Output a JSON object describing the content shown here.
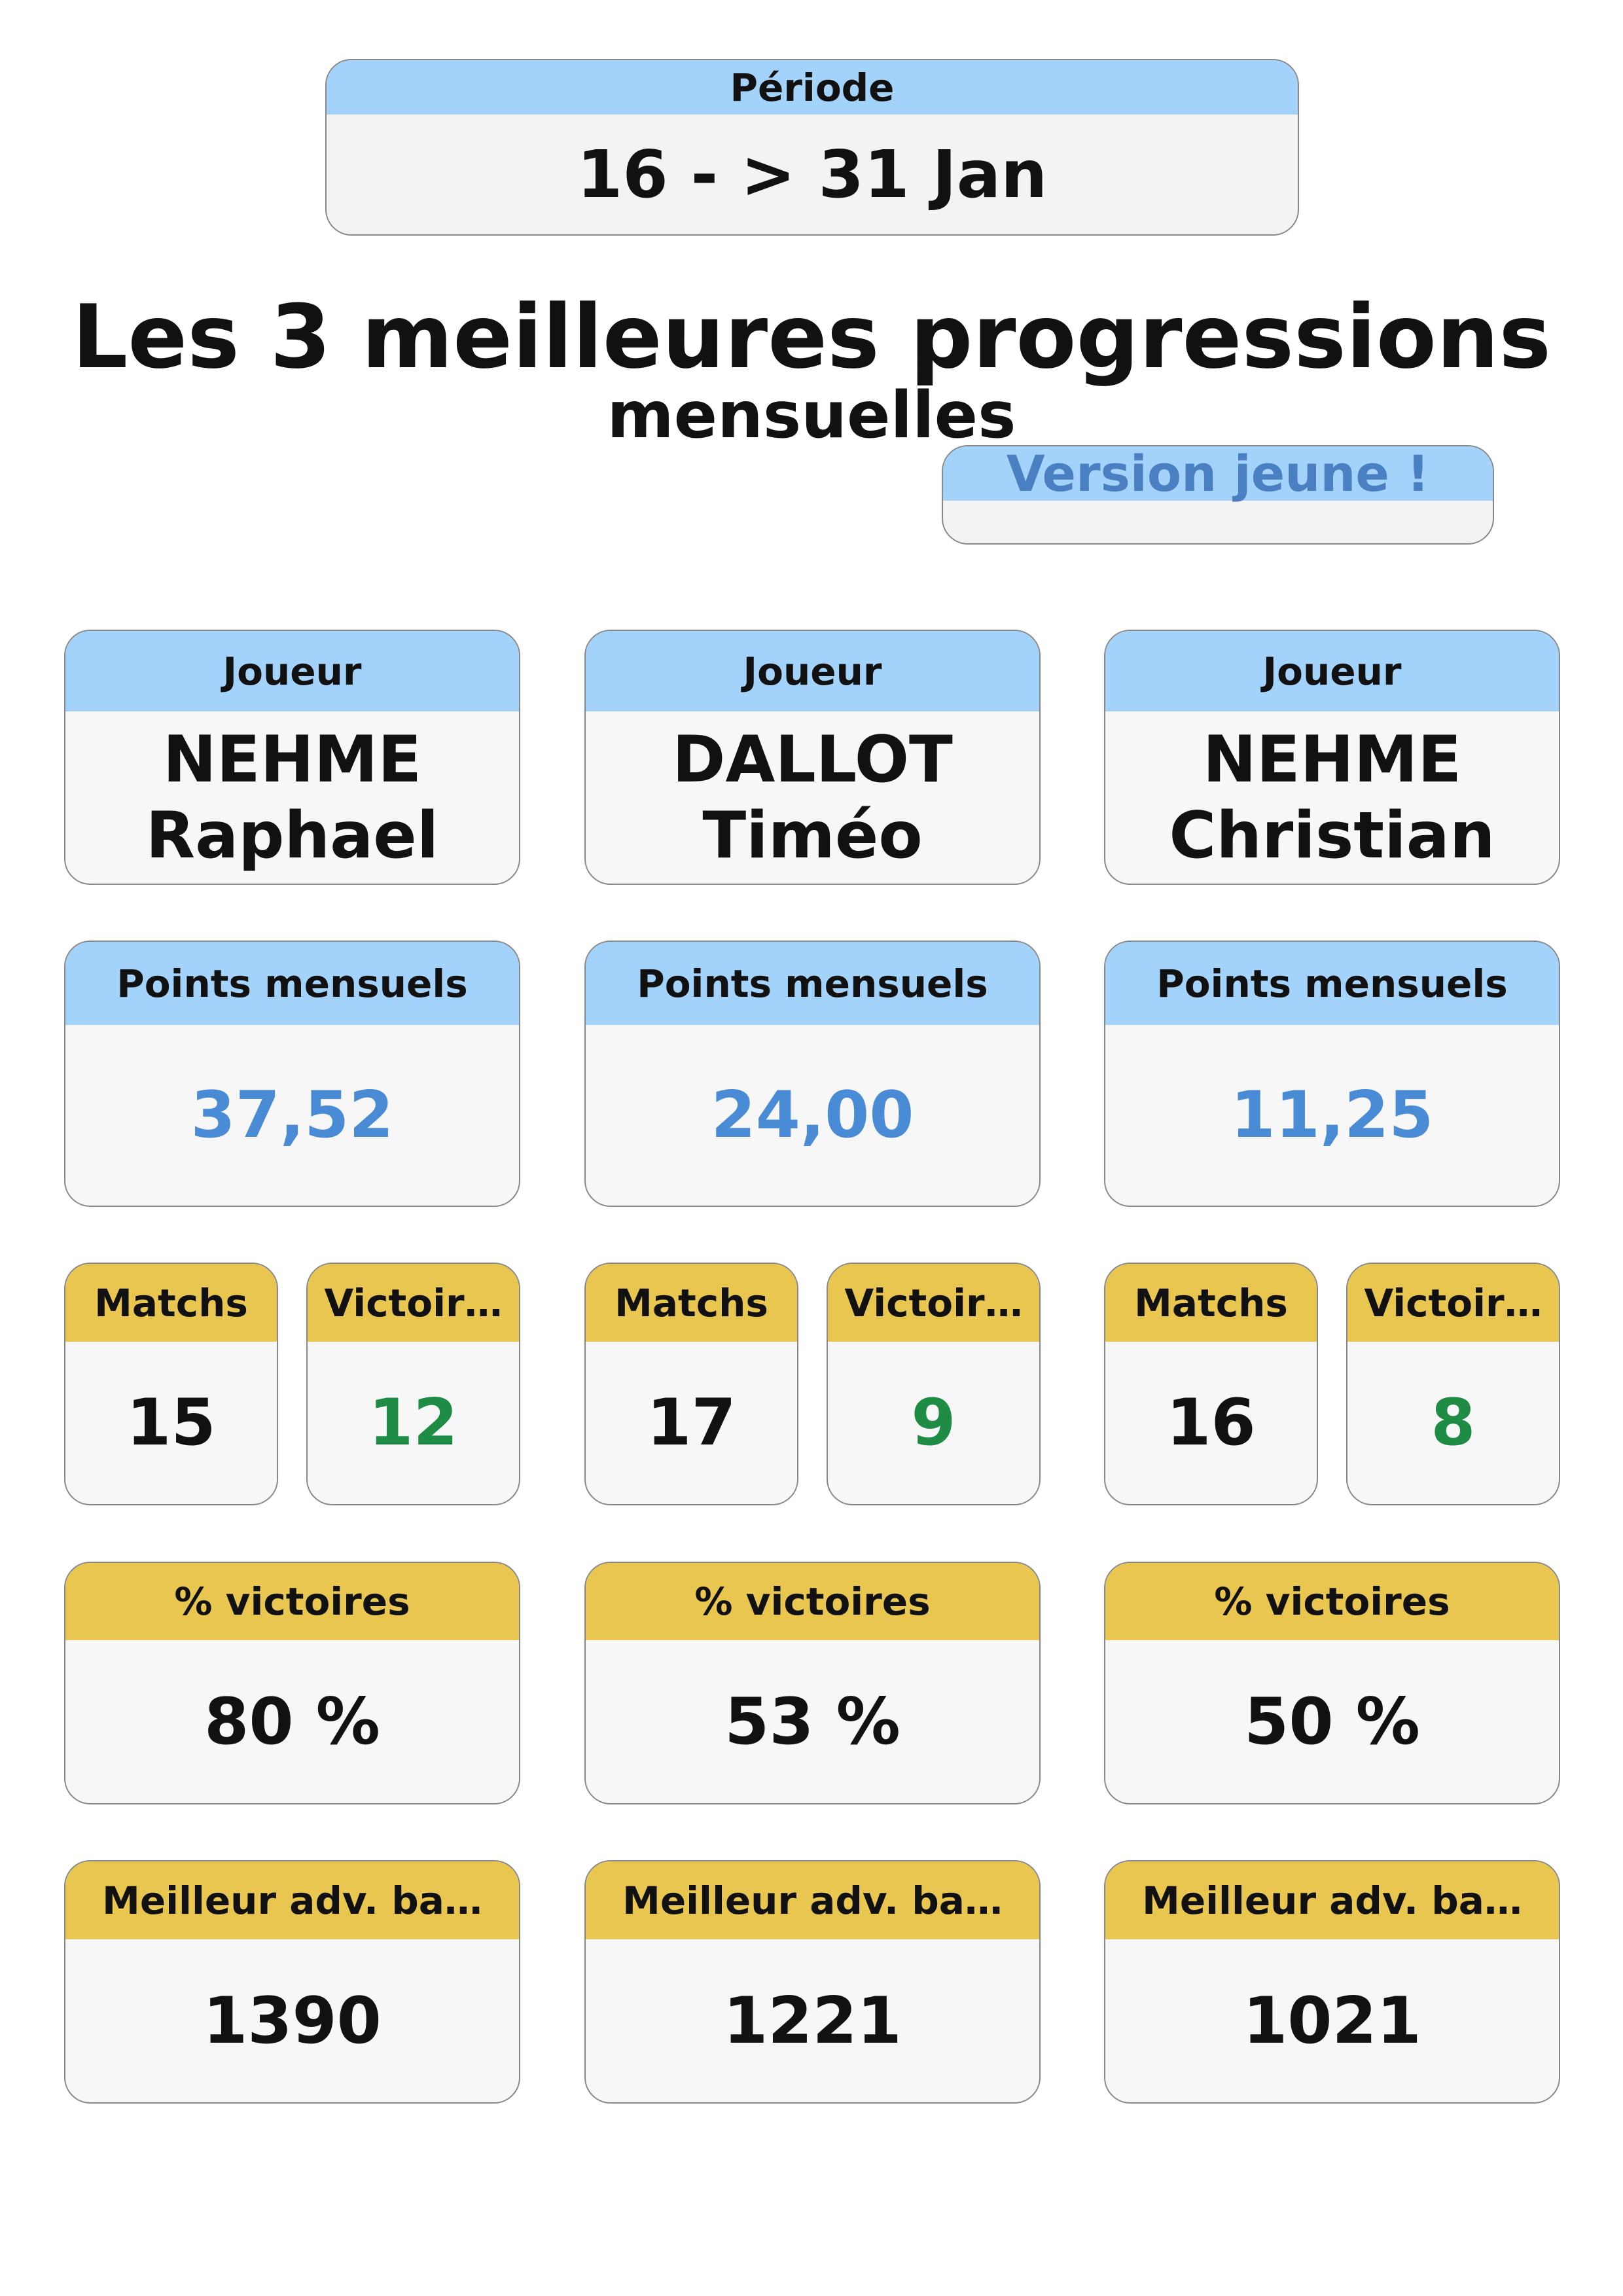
{
  "period": {
    "label": "Période",
    "value": "16 - > 31 Jan"
  },
  "title": "Les 3 meilleures progressions",
  "subtitle": "mensuelles",
  "badge": "Version jeune !",
  "players": [
    {
      "player_label": "Joueur",
      "name": [
        "NEHME",
        "Raphael"
      ],
      "points_label": "Points mensuels",
      "points": "37,52",
      "matches_label": "Matchs",
      "matches": "15",
      "wins_label": "Victoir…",
      "wins": "12",
      "pct_label": "% victoires",
      "pct": "80 %",
      "best_label": "Meilleur adv. ba…",
      "best": "1390"
    },
    {
      "player_label": "Joueur",
      "name": [
        "DALLOT",
        "Timéo"
      ],
      "points_label": "Points mensuels",
      "points": "24,00",
      "matches_label": "Matchs",
      "matches": "17",
      "wins_label": "Victoir…",
      "wins": "9",
      "pct_label": "% victoires",
      "pct": "53 %",
      "best_label": "Meilleur adv. ba…",
      "best": "1221"
    },
    {
      "player_label": "Joueur",
      "name": [
        "NEHME",
        "Christian"
      ],
      "points_label": "Points mensuels",
      "points": "11,25",
      "matches_label": "Matchs",
      "matches": "16",
      "wins_label": "Victoir…",
      "wins": "8",
      "pct_label": "% victoires",
      "pct": "50 %",
      "best_label": "Meilleur adv. ba…",
      "best": "1021"
    }
  ]
}
